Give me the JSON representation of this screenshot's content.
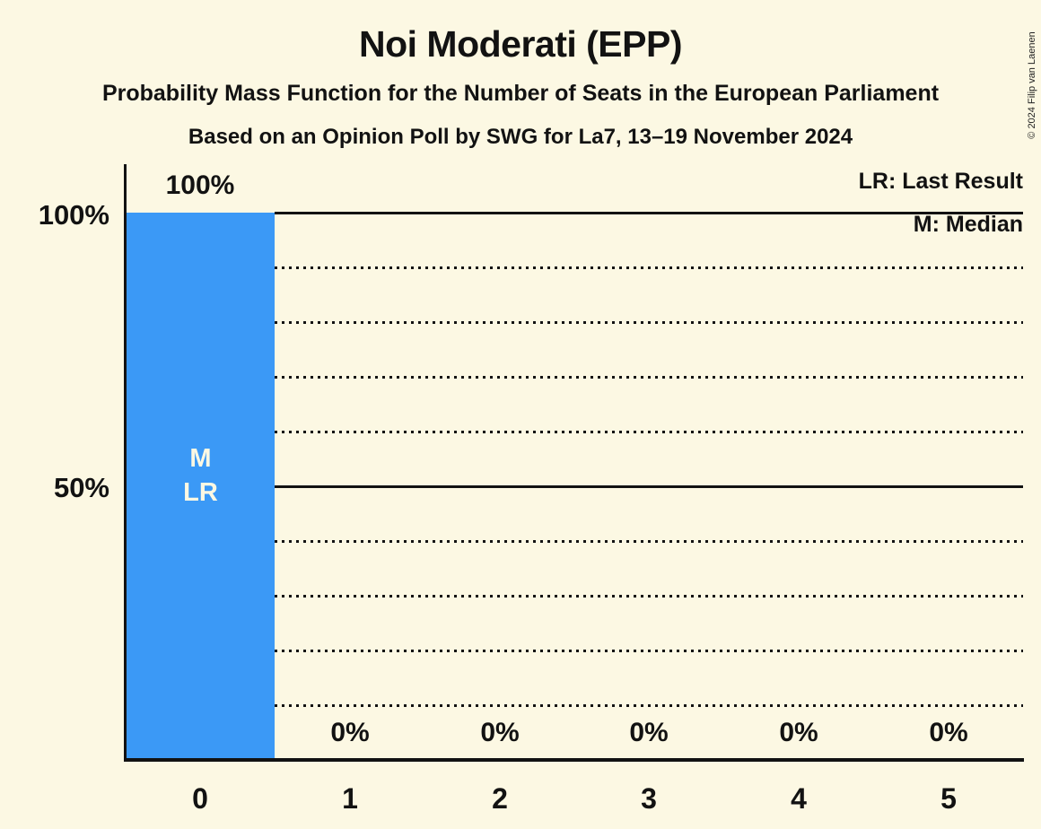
{
  "page": {
    "title": "Noi Moderati (EPP)",
    "subtitle1": "Probability Mass Function for the Number of Seats in the European Parliament",
    "subtitle2": "Based on an Opinion Poll by SWG for La7, 13–19 November 2024",
    "copyright": "© 2024 Filip van Laenen"
  },
  "legend": {
    "lr": "LR: Last Result",
    "m": "M: Median"
  },
  "colors": {
    "background": "#FCF8E3",
    "bar": "#3B99F6",
    "text": "#121212",
    "bar_label": "#FCF8E3"
  },
  "chart_data": {
    "type": "bar",
    "title": "Noi Moderati (EPP)",
    "categories": [
      "0",
      "1",
      "2",
      "3",
      "4",
      "5"
    ],
    "values": [
      100,
      0,
      0,
      0,
      0,
      0
    ],
    "value_labels": [
      "100%",
      "0%",
      "0%",
      "0%",
      "0%",
      "0%"
    ],
    "y_axis_tick_labels": [
      "100%",
      "50%"
    ],
    "ylim": [
      0,
      100
    ],
    "gridlines_pct": [
      90,
      80,
      70,
      60,
      40,
      30,
      20,
      10
    ],
    "solid_gridlines_pct": [
      100,
      50
    ],
    "legend_position": "top-right",
    "annotations": {
      "median_marker": "M",
      "last_result_marker": "LR",
      "median_seats": "0",
      "last_result_seats": "0"
    }
  }
}
